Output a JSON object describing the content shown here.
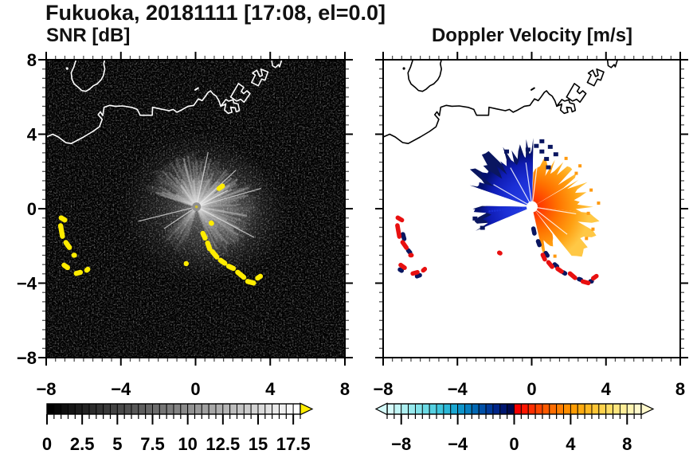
{
  "title": "Fukuoka, 20181111 [17:08, el=0.0]",
  "chart_data": [
    {
      "id": "snr",
      "type": "radar_ppi",
      "title": "SNR [dB]",
      "xlim": [
        -8,
        8
      ],
      "ylim": [
        -8,
        8
      ],
      "x_tick_values": [
        -8,
        -4,
        0,
        4,
        8
      ],
      "x_tick_labels": [
        "−8",
        "−4",
        "0",
        "4",
        "8"
      ],
      "y_tick_values": [
        8,
        4,
        0,
        -4,
        -8
      ],
      "y_tick_labels": [
        "8",
        "4",
        "0",
        "−4",
        "−8"
      ],
      "show_y_labels": true,
      "minor_step": 0.5,
      "background": "#000000",
      "coast_color": "#ffffff",
      "colorbar": {
        "range": [
          0,
          18
        ],
        "segment_step": 0.5,
        "tick_values": [
          0,
          2.5,
          5,
          7.5,
          10,
          12.5,
          15,
          17.5
        ],
        "tick_labels": [
          "0",
          "2.5",
          "5",
          "7.5",
          "10",
          "12.5",
          "15",
          "17.5"
        ],
        "palette": "grayscale",
        "over_color": "#ffee00"
      },
      "fan": {
        "center": [
          0.05,
          0.1
        ],
        "sectors": [
          {
            "a0": 288,
            "a1": 360,
            "r": 2.7,
            "op": 1
          },
          {
            "a0": 0,
            "a1": 66,
            "r": 2.5,
            "op": 1
          },
          {
            "a0": 66,
            "a1": 100,
            "r": 3.0,
            "op": 0.9
          },
          {
            "a0": 100,
            "a1": 160,
            "r": 2.9,
            "op": 0.8
          },
          {
            "a0": 196,
            "a1": 229,
            "r": 2.5,
            "op": 0.5
          }
        ],
        "rays": [
          {
            "az": 62,
            "r": 1.9
          },
          {
            "az": 256,
            "r": 3.2
          },
          {
            "az": 118,
            "r": 3.5
          },
          {
            "az": 74,
            "r": 3.6
          },
          {
            "az": 47,
            "r": 2.9
          },
          {
            "az": 12,
            "r": 3.0
          },
          {
            "az": 236,
            "r": 2.1
          }
        ]
      },
      "spot_color": "#ffec00",
      "spots": [
        [
          -7.1,
          -0.55,
          0.5,
          -30
        ],
        [
          -7.18,
          -1.2,
          0.85,
          -80
        ],
        [
          -6.85,
          -1.95,
          0.6,
          -55
        ],
        [
          -6.5,
          -2.5,
          0.3,
          0
        ],
        [
          -6.95,
          -3.1,
          0.5,
          -35
        ],
        [
          -6.28,
          -3.45,
          0.5,
          15
        ],
        [
          -5.8,
          -3.28,
          0.35,
          40
        ],
        [
          0.45,
          -1.45,
          0.55,
          -65
        ],
        [
          0.7,
          -2.0,
          0.6,
          -70
        ],
        [
          1.02,
          -2.45,
          0.65,
          -50
        ],
        [
          1.45,
          -2.85,
          0.55,
          -35
        ],
        [
          1.9,
          -3.15,
          0.55,
          -25
        ],
        [
          2.42,
          -3.55,
          0.7,
          -40
        ],
        [
          2.95,
          -3.95,
          0.6,
          -15
        ],
        [
          3.4,
          -3.68,
          0.45,
          35
        ],
        [
          0.85,
          -0.78,
          0.3,
          -50
        ],
        [
          1.35,
          1.15,
          0.5,
          35
        ],
        [
          -0.5,
          -2.95,
          0.28,
          -45
        ]
      ]
    },
    {
      "id": "velocity",
      "type": "radar_ppi",
      "title": "Doppler Velocity [m/s]",
      "xlim": [
        -8,
        8
      ],
      "ylim": [
        -8,
        8
      ],
      "x_tick_values": [
        -8,
        -4,
        0,
        4,
        8
      ],
      "x_tick_labels": [
        "−8",
        "−4",
        "0",
        "4",
        "8"
      ],
      "y_tick_values": [
        8,
        4,
        0,
        -4,
        -8
      ],
      "y_tick_labels": [
        "8",
        "4",
        "0",
        "−4",
        "−8"
      ],
      "show_y_labels": false,
      "minor_step": 0.5,
      "background": "#ffffff",
      "coast_color": "#000000",
      "colorbar": {
        "range": [
          -9,
          9
        ],
        "segment_step": 0.5,
        "tick_values": [
          -8,
          -4,
          0,
          4,
          8
        ],
        "tick_labels": [
          "−8",
          "−4",
          "0",
          "4",
          "8"
        ],
        "palette": [
          "#d6fbfa",
          "#c2f6f6",
          "#adf0f2",
          "#98eaee",
          "#82e3ea",
          "#6cdbe6",
          "#55d1e2",
          "#3fc6dd",
          "#2bb8d8",
          "#1aa7d2",
          "#0e94ca",
          "#067fc0",
          "#0268b4",
          "#0150a8",
          "#013a9a",
          "#01268a",
          "#001670",
          "#000a4e",
          "#f70000",
          "#ff1500",
          "#ff2e00",
          "#ff4500",
          "#ff5a00",
          "#ff6d00",
          "#ff7e00",
          "#ff8e00",
          "#ff9d03",
          "#ffab10",
          "#ffb922",
          "#ffc636",
          "#ffd24c",
          "#ffdd64",
          "#ffe67e",
          "#ffee98",
          "#fff4b2",
          "#fff9cc"
        ],
        "under_color": "#d6fbfa",
        "over_color": "#fff9cc"
      },
      "fan": {
        "center": [
          0.02,
          0.1
        ],
        "neg_sectors": [
          {
            "a0": 289,
            "a1": 363,
            "r": 2.9,
            "amp": 0.45
          },
          {
            "a0": 247,
            "a1": 271,
            "r": 2.8,
            "amp": 0.35
          }
        ],
        "pos_sectors": [
          {
            "a0": 2,
            "a1": 60,
            "r": 2.3,
            "amp": 0.5
          },
          {
            "a0": 60,
            "a1": 96,
            "r": 2.6,
            "amp": 0.45
          },
          {
            "a0": 96,
            "a1": 143,
            "r": 3.1,
            "amp": 0.4
          },
          {
            "a0": 143,
            "a1": 169,
            "r": 2.0,
            "amp": 0.5
          }
        ],
        "gap_rays": [
          300,
          331,
          352,
          7,
          99,
          128
        ],
        "dotted_ray": {
          "az": 264,
          "r0": 0.6,
          "r1": 2.3,
          "n": 13
        }
      },
      "neg_color": "#1b2fd6",
      "pos_color": "#ff7300",
      "navy_color": "#0a1660",
      "red_color": "#e81010",
      "red_spots": [
        [
          -7.1,
          -0.55,
          0.5,
          -30
        ],
        [
          -7.18,
          -1.2,
          0.85,
          -80
        ],
        [
          -6.85,
          -1.95,
          0.6,
          -55
        ],
        [
          -6.5,
          -2.5,
          0.3,
          0
        ],
        [
          -6.95,
          -3.1,
          0.5,
          -35
        ],
        [
          -6.28,
          -3.45,
          0.5,
          15
        ],
        [
          -5.8,
          -3.28,
          0.35,
          40
        ],
        [
          0.65,
          -2.6,
          0.5,
          -65
        ],
        [
          1.0,
          -3.0,
          0.55,
          -50
        ],
        [
          1.5,
          -3.3,
          0.5,
          -35
        ],
        [
          2.2,
          -3.6,
          0.6,
          -40
        ],
        [
          2.9,
          -3.95,
          0.55,
          -15
        ],
        [
          3.4,
          -3.68,
          0.45,
          35
        ],
        [
          -1.72,
          -2.38,
          0.3,
          -30
        ]
      ],
      "navy_spots": [
        [
          0.12,
          -1.2,
          0.5,
          -78
        ],
        [
          0.38,
          -1.85,
          0.45,
          -70
        ],
        [
          0.8,
          -2.45,
          0.4,
          -55
        ],
        [
          1.3,
          -3.05,
          0.4,
          -40
        ],
        [
          1.75,
          -3.45,
          0.35,
          -30
        ],
        [
          2.6,
          -3.8,
          0.35,
          -20
        ],
        [
          3.2,
          -3.9,
          0.3,
          0
        ],
        [
          -6.9,
          -1.5,
          0.5,
          -75
        ],
        [
          -6.6,
          -2.3,
          0.4,
          -50
        ],
        [
          -6.1,
          -3.6,
          0.4,
          20
        ],
        [
          -7.05,
          -3.3,
          0.35,
          -30
        ]
      ],
      "navy_specks": [
        [
          -0.2,
          3.15
        ],
        [
          0.25,
          3.35
        ],
        [
          0.55,
          3.05
        ],
        [
          0.8,
          2.65
        ],
        [
          1.0,
          3.3
        ],
        [
          -1.35,
          3.05
        ],
        [
          -2.05,
          2.45
        ],
        [
          0.9,
          2.2
        ],
        [
          1.3,
          2.9
        ],
        [
          -2.65,
          -1.05
        ],
        [
          -3.05,
          -0.55
        ],
        [
          0.55,
          3.6
        ]
      ],
      "orange_speckles": [
        [
          2.4,
          1.9
        ],
        [
          3.2,
          1.0
        ],
        [
          3.05,
          -0.25
        ],
        [
          1.85,
          2.7
        ],
        [
          3.6,
          0.3
        ],
        [
          2.95,
          -1.6
        ],
        [
          1.25,
          -2.55
        ],
        [
          3.3,
          -1.1
        ],
        [
          2.6,
          2.3
        ]
      ]
    }
  ],
  "coastline": {
    "main": [
      [
        -8,
        3.85
      ],
      [
        -7.65,
        4.0
      ],
      [
        -7.35,
        3.85
      ],
      [
        -6.95,
        3.55
      ],
      [
        -6.65,
        3.5
      ],
      [
        -6.0,
        3.85
      ],
      [
        -5.5,
        4.15
      ],
      [
        -5.15,
        4.4
      ],
      [
        -5.0,
        4.8
      ],
      [
        -5.22,
        5.05
      ],
      [
        -5.1,
        5.2
      ],
      [
        -4.97,
        5.0
      ],
      [
        -4.9,
        5.45
      ],
      [
        -4.6,
        5.55
      ],
      [
        -4.3,
        5.5
      ],
      [
        -3.9,
        5.52
      ],
      [
        -3.42,
        5.44
      ],
      [
        -3.12,
        5.33
      ],
      [
        -2.97,
        5.02
      ],
      [
        -2.32,
        5.02
      ],
      [
        -2.3,
        5.45
      ],
      [
        -1.9,
        5.36
      ],
      [
        -1.6,
        5.3
      ],
      [
        -1.42,
        5.26
      ],
      [
        -1.2,
        5.33
      ],
      [
        -1.0,
        5.18
      ],
      [
        -0.75,
        5.3
      ],
      [
        -0.4,
        5.5
      ],
      [
        -0.1,
        5.55
      ],
      [
        0.15,
        5.9
      ],
      [
        0.35,
        5.8
      ],
      [
        0.5,
        6.0
      ],
      [
        0.68,
        6.25
      ],
      [
        0.8,
        6.33
      ],
      [
        0.95,
        6.15
      ],
      [
        1.1,
        6.05
      ],
      [
        1.25,
        5.8
      ],
      [
        1.35,
        5.5
      ]
    ],
    "peninsula": [
      [
        -6.4,
        8.0
      ],
      [
        -6.52,
        7.62
      ],
      [
        -6.66,
        7.3
      ],
      [
        -6.62,
        6.95
      ],
      [
        -6.5,
        6.7
      ],
      [
        -6.28,
        6.52
      ],
      [
        -6.1,
        6.35
      ],
      [
        -5.88,
        6.3
      ],
      [
        -5.68,
        6.42
      ],
      [
        -5.48,
        6.6
      ],
      [
        -5.28,
        6.7
      ],
      [
        -5.06,
        6.92
      ],
      [
        -4.94,
        7.14
      ],
      [
        -4.86,
        7.5
      ],
      [
        -4.92,
        7.78
      ],
      [
        -4.86,
        8.0
      ]
    ],
    "port": [
      [
        [
          1.35,
          5.5
        ],
        [
          1.62,
          5.62
        ],
        [
          1.55,
          5.3
        ],
        [
          1.75,
          5.12
        ],
        [
          1.95,
          5.18
        ],
        [
          1.88,
          5.45
        ],
        [
          2.12,
          5.42
        ],
        [
          2.18,
          5.2
        ],
        [
          2.35,
          5.28
        ],
        [
          2.28,
          5.62
        ],
        [
          2.05,
          5.68
        ],
        [
          2.0,
          5.85
        ],
        [
          1.78,
          5.78
        ],
        [
          1.62,
          5.86
        ]
      ],
      [
        [
          1.88,
          6.0
        ],
        [
          2.3,
          6.72
        ],
        [
          2.58,
          6.52
        ],
        [
          2.45,
          6.3
        ],
        [
          2.58,
          6.18
        ],
        [
          2.75,
          6.33
        ],
        [
          2.92,
          6.18
        ],
        [
          2.6,
          5.72
        ],
        [
          2.42,
          5.88
        ],
        [
          2.2,
          5.78
        ]
      ],
      [
        [
          3.0,
          6.78
        ],
        [
          3.2,
          7.18
        ],
        [
          3.05,
          7.28
        ],
        [
          3.28,
          7.44
        ],
        [
          3.44,
          7.1
        ],
        [
          3.58,
          7.16
        ],
        [
          3.5,
          7.5
        ],
        [
          3.88,
          7.34
        ],
        [
          3.72,
          6.9
        ],
        [
          3.54,
          6.96
        ],
        [
          3.36,
          6.6
        ]
      ]
    ],
    "port_squiggle": [
      [
        4.08,
        8.0
      ],
      [
        4.12,
        7.68
      ],
      [
        4.28,
        7.58
      ],
      [
        4.44,
        7.74
      ],
      [
        4.5,
        7.62
      ],
      [
        4.62,
        8.0
      ]
    ],
    "islet_dashes": [
      [
        [
          -0.02,
          6.38
        ],
        [
          0.14,
          6.48
        ]
      ]
    ],
    "islet_dots": [
      [
        -6.88,
        7.53
      ]
    ]
  }
}
